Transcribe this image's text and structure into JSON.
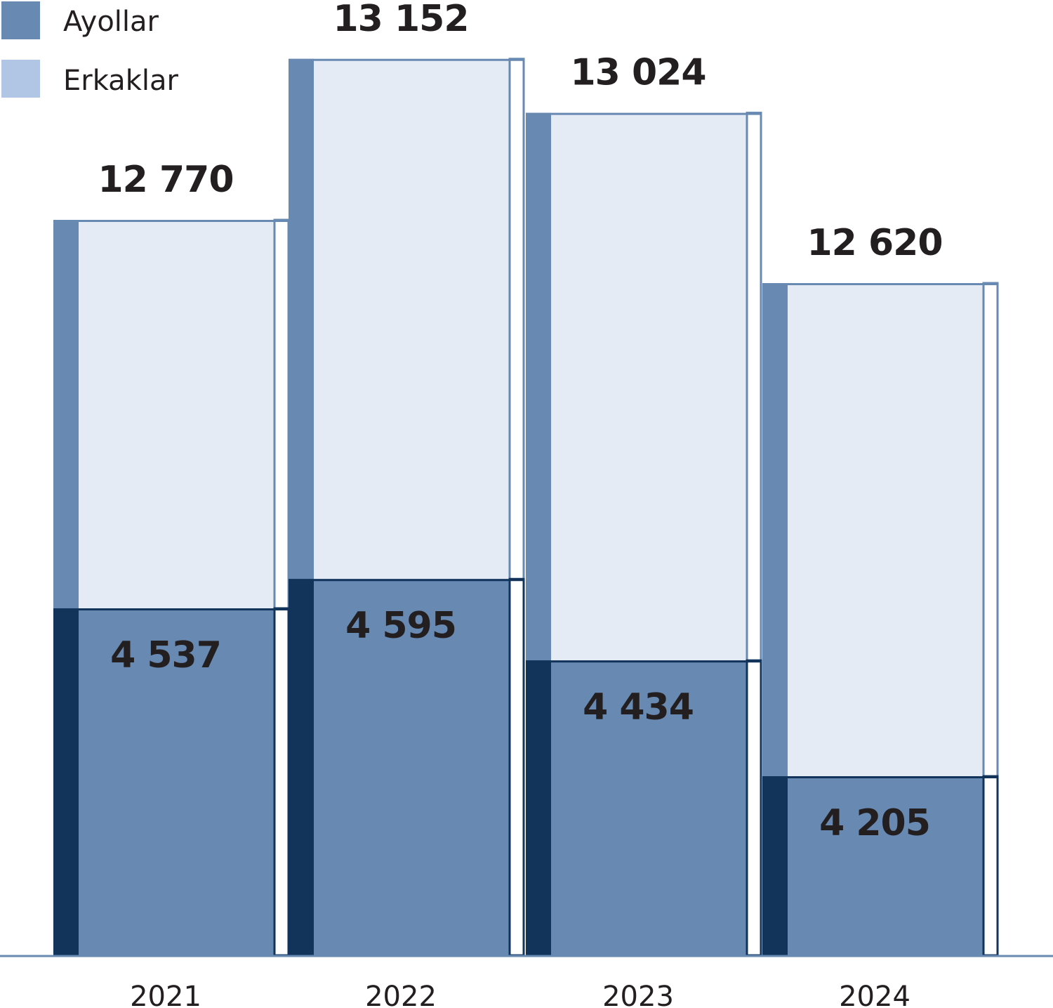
{
  "chart_data": {
    "type": "bar",
    "stacked": false,
    "categories": [
      "2021",
      "2022",
      "2023",
      "2024"
    ],
    "series": [
      {
        "name": "Ayollar",
        "values": [
          4537,
          4595,
          4434,
          4205
        ],
        "labels": [
          "4 537",
          "4 595",
          "4 434",
          "4 205"
        ],
        "color": "#6889b2"
      },
      {
        "name": "Erkaklar",
        "values": [
          12770,
          13152,
          13024,
          12620
        ],
        "labels": [
          "12 770",
          "13 152",
          "13 024",
          "12 620"
        ],
        "color": "#b0c6e4"
      }
    ],
    "legend_position": "top-left",
    "grid": false,
    "title": "",
    "xlabel": "",
    "ylabel": "",
    "colors": {
      "women_dark": "#12335a",
      "total_fill": "#e4ebf5",
      "axis": "#6889b2"
    }
  }
}
